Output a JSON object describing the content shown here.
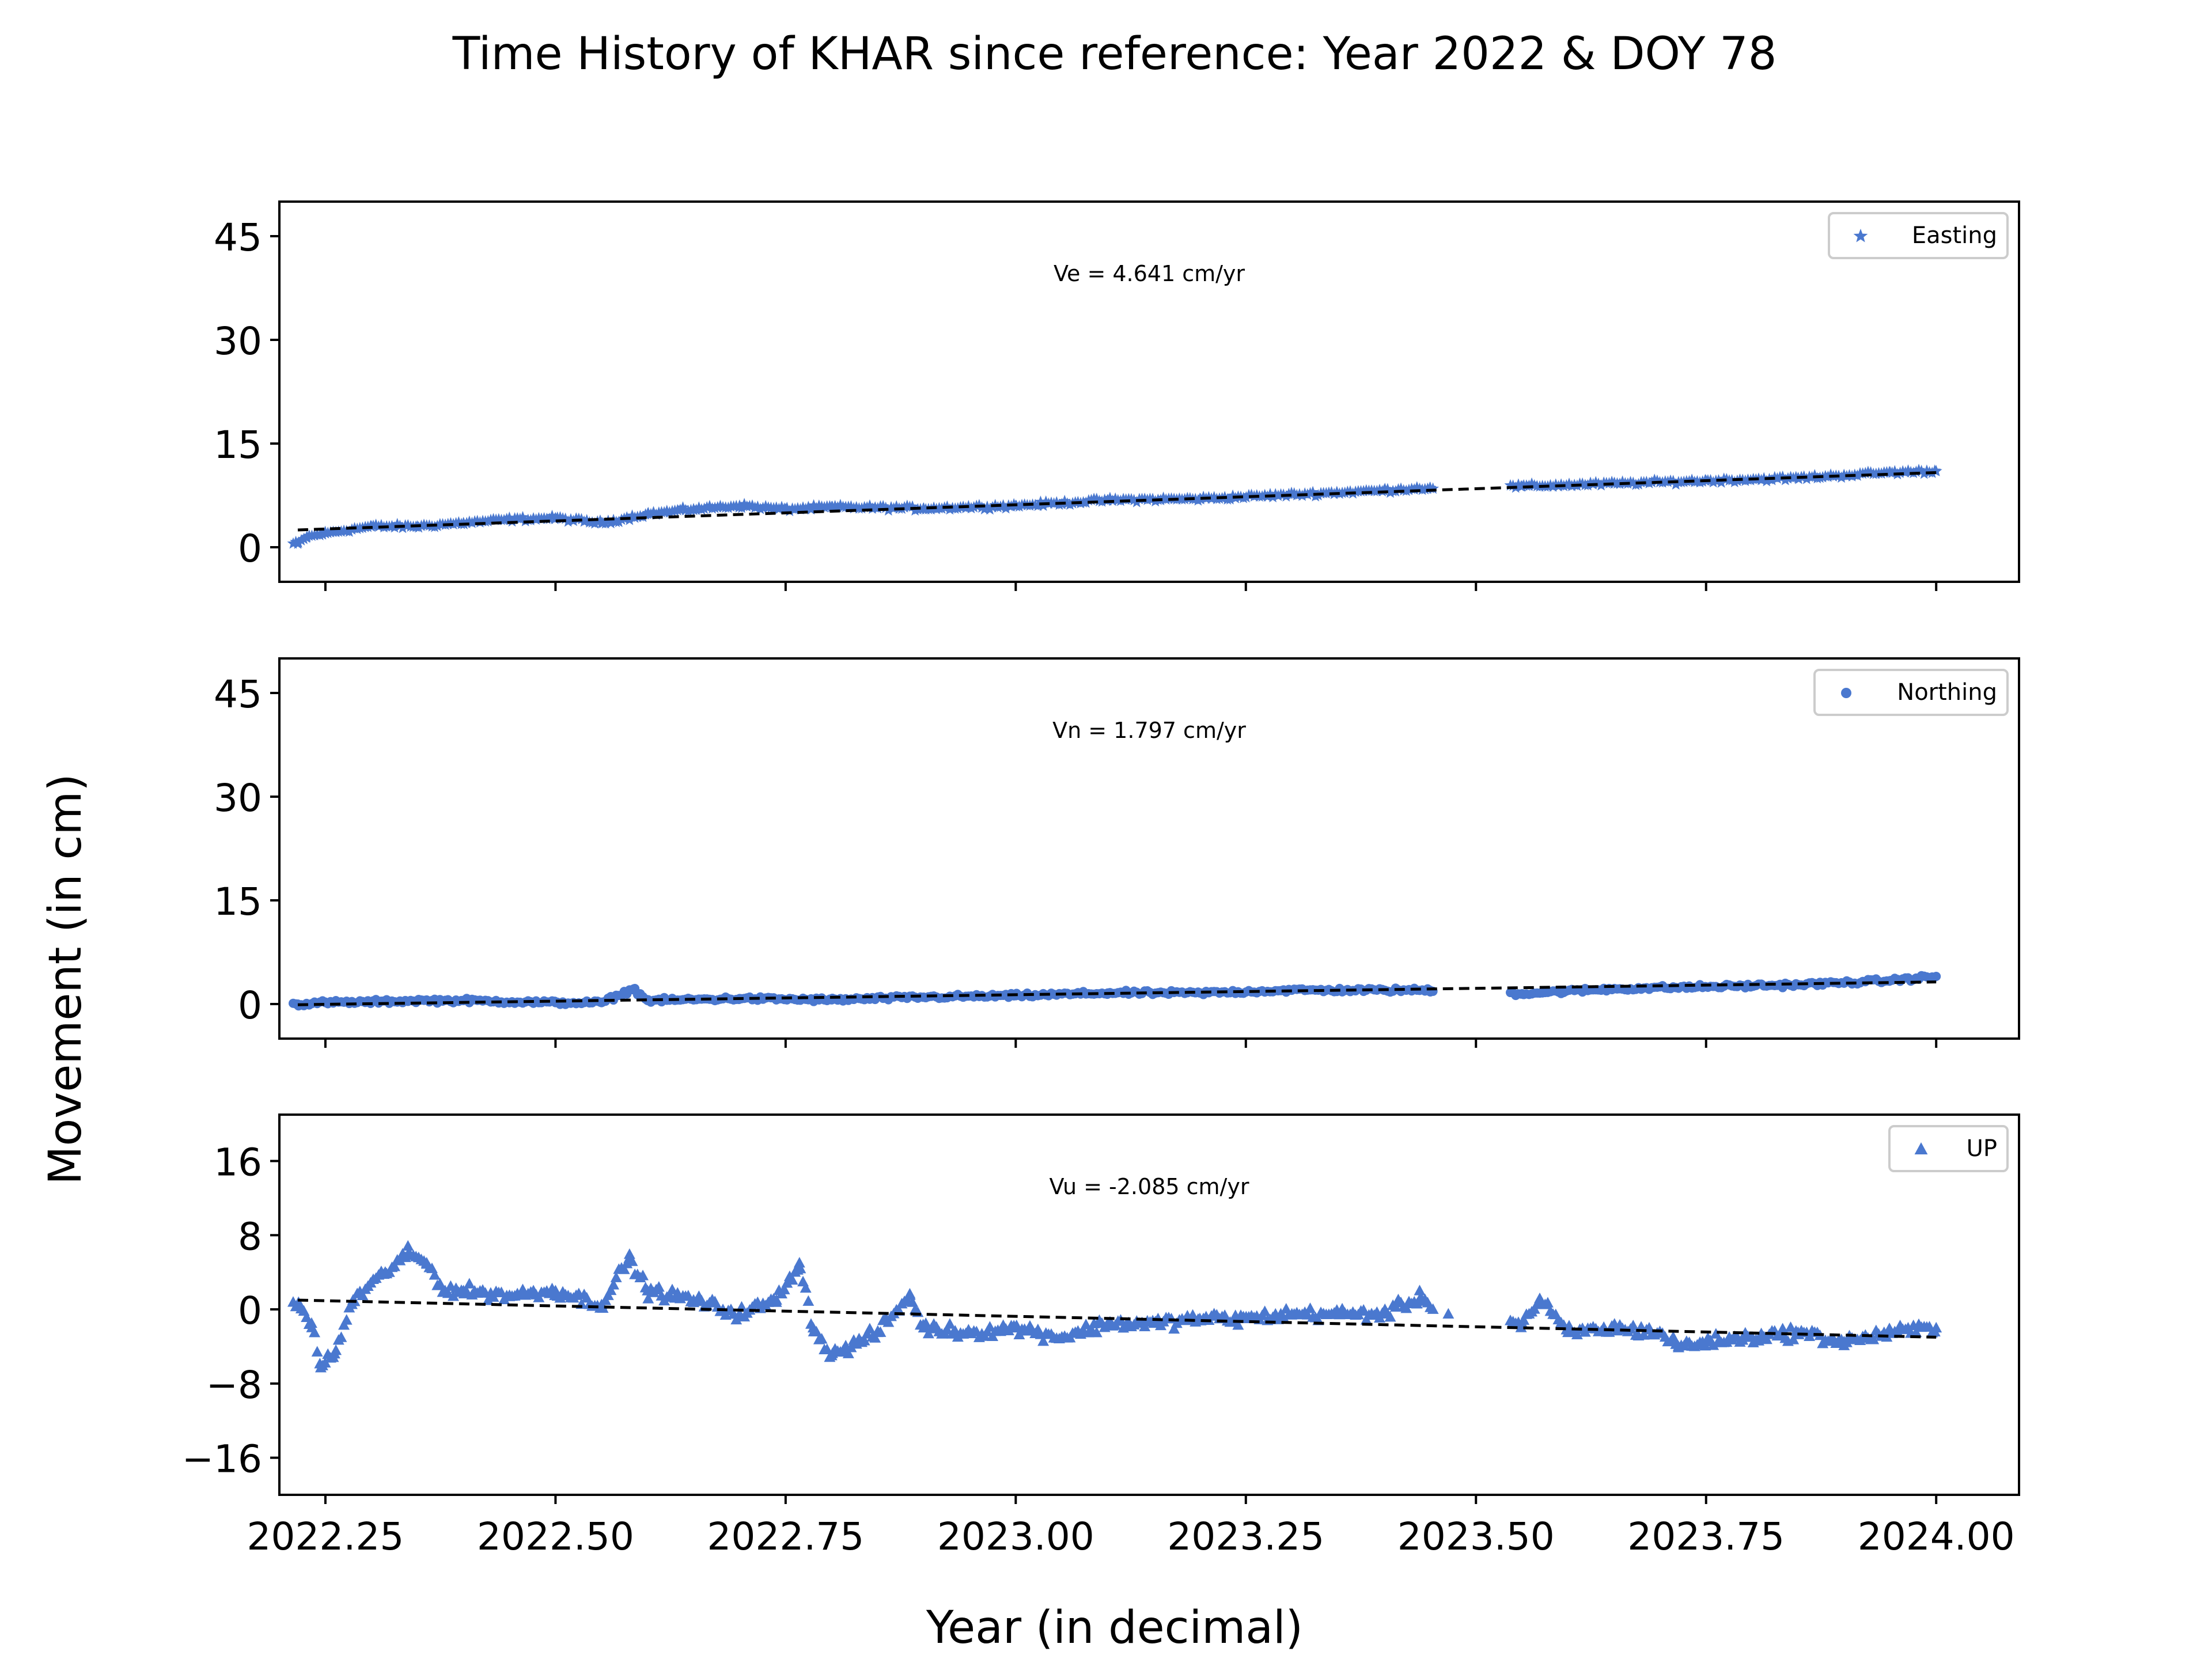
{
  "figure": {
    "title": "Time History of KHAR since reference: Year 2022 & DOY 78",
    "xlabel": "Year (in decimal)",
    "ylabel": "Movement (in cm)"
  },
  "colors": {
    "marker": "#4a78cf",
    "trend": "#000000",
    "axes": "#000000"
  },
  "chart_data": [
    {
      "type": "scatter",
      "series_name": "Easting",
      "marker": "star",
      "annotation": "Ve =  4.641 cm/yr",
      "legend_position": "upper right",
      "xlim": [
        2022.2,
        2024.09
      ],
      "ylim": [
        -5,
        50
      ],
      "yticks": [
        0,
        15,
        30,
        45
      ],
      "ytick_labels": [
        "0",
        "15",
        "30",
        "45"
      ],
      "xticks": [
        2022.25,
        2022.5,
        2022.75,
        2023.0,
        2023.25,
        2023.5,
        2023.75,
        2024.0
      ],
      "xtick_labels": [
        "2022.25",
        "2022.50",
        "2022.75",
        "2023.00",
        "2023.25",
        "2023.50",
        "2023.75",
        "2024.00"
      ],
      "trend": {
        "x": [
          2022.22,
          2024.0
        ],
        "y": [
          2.5,
          10.8
        ]
      },
      "data_range": {
        "x_start": 2022.215,
        "x_end": 2024.0,
        "gap_start": 2023.455,
        "gap_end": 2023.535
      },
      "approximate_points": [
        [
          2022.22,
          0.5
        ],
        [
          2022.23,
          1.5
        ],
        [
          2022.25,
          2.0
        ],
        [
          2022.3,
          3.0
        ],
        [
          2022.35,
          3.0
        ],
        [
          2022.4,
          3.5
        ],
        [
          2022.45,
          4.0
        ],
        [
          2022.5,
          4.2
        ],
        [
          2022.55,
          3.5
        ],
        [
          2022.6,
          4.8
        ],
        [
          2022.65,
          5.5
        ],
        [
          2022.7,
          6.0
        ],
        [
          2022.75,
          5.5
        ],
        [
          2022.8,
          5.8
        ],
        [
          2022.9,
          5.6
        ],
        [
          2023.0,
          6.0
        ],
        [
          2023.1,
          6.8
        ],
        [
          2023.2,
          7.0
        ],
        [
          2023.3,
          7.6
        ],
        [
          2023.4,
          8.2
        ],
        [
          2023.45,
          8.6
        ],
        [
          2023.55,
          8.8
        ],
        [
          2023.65,
          9.2
        ],
        [
          2023.75,
          9.6
        ],
        [
          2023.85,
          10.0
        ],
        [
          2023.95,
          10.8
        ],
        [
          2024.0,
          11.0
        ]
      ]
    },
    {
      "type": "scatter",
      "series_name": "Northing",
      "marker": "circle",
      "annotation": "Vn =  1.797 cm/yr",
      "legend_position": "upper right",
      "xlim": [
        2022.2,
        2024.09
      ],
      "ylim": [
        -5,
        50
      ],
      "yticks": [
        0,
        15,
        30,
        45
      ],
      "ytick_labels": [
        "0",
        "15",
        "30",
        "45"
      ],
      "xticks": [
        2022.25,
        2022.5,
        2022.75,
        2023.0,
        2023.25,
        2023.5,
        2023.75,
        2024.0
      ],
      "xtick_labels": [
        "2022.25",
        "2022.50",
        "2022.75",
        "2023.00",
        "2023.25",
        "2023.50",
        "2023.75",
        "2024.00"
      ],
      "trend": {
        "x": [
          2022.22,
          2024.0
        ],
        "y": [
          -0.1,
          3.2
        ]
      },
      "data_range": {
        "x_start": 2022.215,
        "x_end": 2024.0,
        "gap_start": 2023.455,
        "gap_end": 2023.535
      },
      "approximate_points": [
        [
          2022.22,
          0.0
        ],
        [
          2022.25,
          0.2
        ],
        [
          2022.3,
          0.3
        ],
        [
          2022.35,
          0.5
        ],
        [
          2022.4,
          0.5
        ],
        [
          2022.5,
          0.2
        ],
        [
          2022.55,
          0.2
        ],
        [
          2022.585,
          2.2
        ],
        [
          2022.6,
          0.5
        ],
        [
          2022.7,
          0.8
        ],
        [
          2022.8,
          0.6
        ],
        [
          2022.9,
          1.0
        ],
        [
          2023.0,
          1.2
        ],
        [
          2023.1,
          1.6
        ],
        [
          2023.2,
          1.6
        ],
        [
          2023.3,
          2.0
        ],
        [
          2023.4,
          2.0
        ],
        [
          2023.45,
          2.0
        ],
        [
          2023.55,
          1.5
        ],
        [
          2023.65,
          2.2
        ],
        [
          2023.75,
          2.5
        ],
        [
          2023.85,
          2.8
        ],
        [
          2023.95,
          3.4
        ],
        [
          2024.0,
          4.0
        ]
      ]
    },
    {
      "type": "scatter",
      "series_name": "UP",
      "marker": "triangle",
      "annotation": "Vu = -2.085 cm/yr",
      "legend_position": "upper right",
      "xlim": [
        2022.2,
        2024.09
      ],
      "ylim": [
        -20,
        21
      ],
      "yticks": [
        -16,
        -8,
        0,
        8,
        16
      ],
      "ytick_labels": [
        "−16",
        "−8",
        "0",
        "8",
        "16"
      ],
      "xticks": [
        2022.25,
        2022.5,
        2022.75,
        2023.0,
        2023.25,
        2023.5,
        2023.75,
        2024.0
      ],
      "xtick_labels": [
        "2022.25",
        "2022.50",
        "2022.75",
        "2023.00",
        "2023.25",
        "2023.50",
        "2023.75",
        "2024.00"
      ],
      "trend": {
        "x": [
          2022.22,
          2024.0
        ],
        "y": [
          1.0,
          -3.0
        ]
      },
      "data_range": {
        "x_start": 2022.215,
        "x_end": 2024.0,
        "gap_start": 2023.455,
        "gap_end": 2023.535
      },
      "approximate_points": [
        [
          2022.22,
          0.5
        ],
        [
          2022.235,
          -1.5
        ],
        [
          2022.245,
          -6.3
        ],
        [
          2022.26,
          -4.8
        ],
        [
          2022.28,
          1.0
        ],
        [
          2022.315,
          4.0
        ],
        [
          2022.34,
          6.0
        ],
        [
          2022.36,
          5.0
        ],
        [
          2022.38,
          2.0
        ],
        [
          2022.4,
          2.0
        ],
        [
          2022.45,
          1.5
        ],
        [
          2022.5,
          2.0
        ],
        [
          2022.55,
          0.5
        ],
        [
          2022.58,
          5.5
        ],
        [
          2022.6,
          2.0
        ],
        [
          2022.65,
          1.0
        ],
        [
          2022.7,
          -0.5
        ],
        [
          2022.74,
          1.0
        ],
        [
          2022.765,
          5.0
        ],
        [
          2022.78,
          -2.0
        ],
        [
          2022.8,
          -5.0
        ],
        [
          2022.85,
          -2.5
        ],
        [
          2022.885,
          1.5
        ],
        [
          2022.9,
          -2.0
        ],
        [
          2022.95,
          -2.5
        ],
        [
          2023.0,
          -2.0
        ],
        [
          2023.05,
          -3.0
        ],
        [
          2023.1,
          -1.5
        ],
        [
          2023.15,
          -1.5
        ],
        [
          2023.2,
          -1.0
        ],
        [
          2023.25,
          -1.0
        ],
        [
          2023.3,
          -0.5
        ],
        [
          2023.35,
          -0.5
        ],
        [
          2023.4,
          -0.5
        ],
        [
          2023.44,
          1.3
        ],
        [
          2023.47,
          -0.5
        ],
        [
          2023.55,
          -1.5
        ],
        [
          2023.57,
          1.0
        ],
        [
          2023.6,
          -2.5
        ],
        [
          2023.65,
          -2.0
        ],
        [
          2023.7,
          -2.5
        ],
        [
          2023.72,
          -4.0
        ],
        [
          2023.75,
          -3.5
        ],
        [
          2023.8,
          -3.0
        ],
        [
          2023.85,
          -2.5
        ],
        [
          2023.9,
          -3.5
        ],
        [
          2023.95,
          -2.5
        ],
        [
          2024.0,
          -2.0
        ]
      ]
    }
  ]
}
